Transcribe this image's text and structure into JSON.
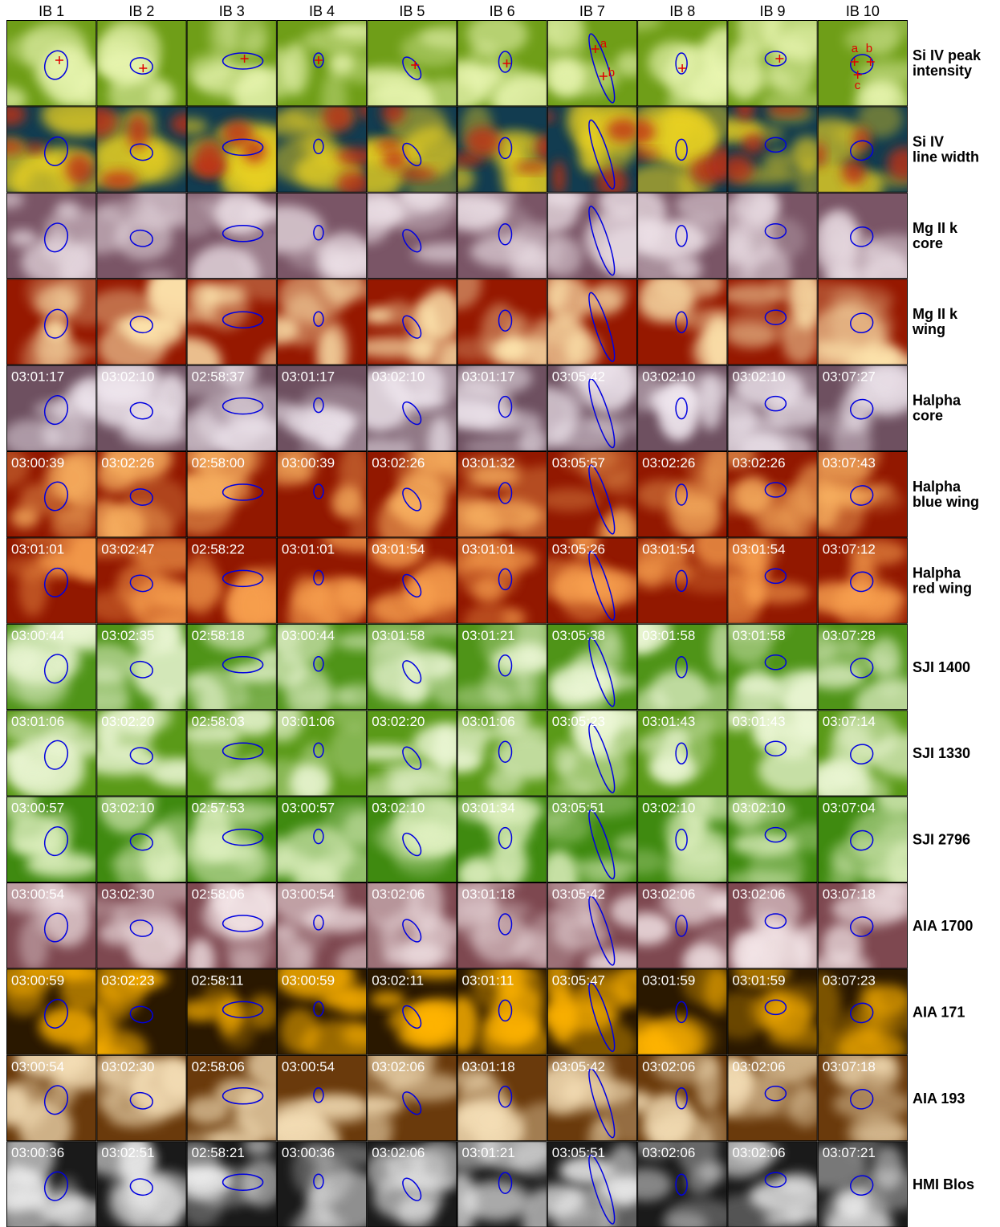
{
  "columns": [
    "IB 1",
    "IB 2",
    "IB 3",
    "IB 4",
    "IB 5",
    "IB 6",
    "IB 7",
    "IB 8",
    "IB 9",
    "IB 10"
  ],
  "rows": [
    {
      "label": [
        "Si IV peak",
        "intensity"
      ]
    },
    {
      "label": [
        "Si IV",
        "line width"
      ]
    },
    {
      "label": [
        "Mg II k",
        "core"
      ]
    },
    {
      "label": [
        "Mg II k",
        "wing"
      ]
    },
    {
      "label": [
        "Halpha",
        "core"
      ],
      "times": [
        "03:01:17",
        "03:02:10",
        "02:58:37",
        "03:01:17",
        "03:02:10",
        "03:01:17",
        "03:05:42",
        "03:02:10",
        "03:02:10",
        "03:07:27"
      ]
    },
    {
      "label": [
        "Halpha",
        "blue wing"
      ],
      "times": [
        "03:00:39",
        "03:02:26",
        "02:58:00",
        "03:00:39",
        "03:02:26",
        "03:01:32",
        "03:05:57",
        "03:02:26",
        "03:02:26",
        "03:07:43"
      ]
    },
    {
      "label": [
        "Halpha",
        "red wing"
      ],
      "times": [
        "03:01:01",
        "03:02:47",
        "02:58:22",
        "03:01:01",
        "03:01:54",
        "03:01:01",
        "03:05:26",
        "03:01:54",
        "03:01:54",
        "03:07:12"
      ]
    },
    {
      "label": [
        "SJI 1400"
      ],
      "times": [
        "03:00:44",
        "03:02:35",
        "02:58:18",
        "03:00:44",
        "03:01:58",
        "03:01:21",
        "03:05:38",
        "03:01:58",
        "03:01:58",
        "03:07:28"
      ]
    },
    {
      "label": [
        "SJI 1330"
      ],
      "times": [
        "03:01:06",
        "03:02:20",
        "02:58:03",
        "03:01:06",
        "03:02:20",
        "03:01:06",
        "03:05:23",
        "03:01:43",
        "03:01:43",
        "03:07:14"
      ]
    },
    {
      "label": [
        "SJI 2796"
      ],
      "times": [
        "03:00:57",
        "03:02:10",
        "02:57:53",
        "03:00:57",
        "03:02:10",
        "03:01:34",
        "03:05:51",
        "03:02:10",
        "03:02:10",
        "03:07:04"
      ]
    },
    {
      "label": [
        "AIA 1700"
      ],
      "times": [
        "03:00:54",
        "03:02:30",
        "02:58:06",
        "03:00:54",
        "03:02:06",
        "03:01:18",
        "03:05:42",
        "03:02:06",
        "03:02:06",
        "03:07:18"
      ]
    },
    {
      "label": [
        "AIA 171"
      ],
      "times": [
        "03:00:59",
        "03:02:23",
        "02:58:11",
        "03:00:59",
        "03:02:11",
        "03:01:11",
        "03:05:47",
        "03:01:59",
        "03:01:59",
        "03:07:23"
      ]
    },
    {
      "label": [
        "AIA 193"
      ],
      "times": [
        "03:00:54",
        "03:02:30",
        "02:58:06",
        "03:00:54",
        "03:02:06",
        "03:01:18",
        "03:05:42",
        "03:02:06",
        "03:02:06",
        "03:07:18"
      ]
    },
    {
      "label": [
        "HMI Blos"
      ],
      "times": [
        "03:00:36",
        "03:02:51",
        "02:58:21",
        "03:00:36",
        "03:02:06",
        "03:01:21",
        "03:05:51",
        "03:02:06",
        "03:02:06",
        "03:07:21"
      ]
    }
  ],
  "annotations": {
    "IB 7": [
      "a",
      "b"
    ],
    "IB 10": [
      "a",
      "b",
      "c"
    ]
  }
}
